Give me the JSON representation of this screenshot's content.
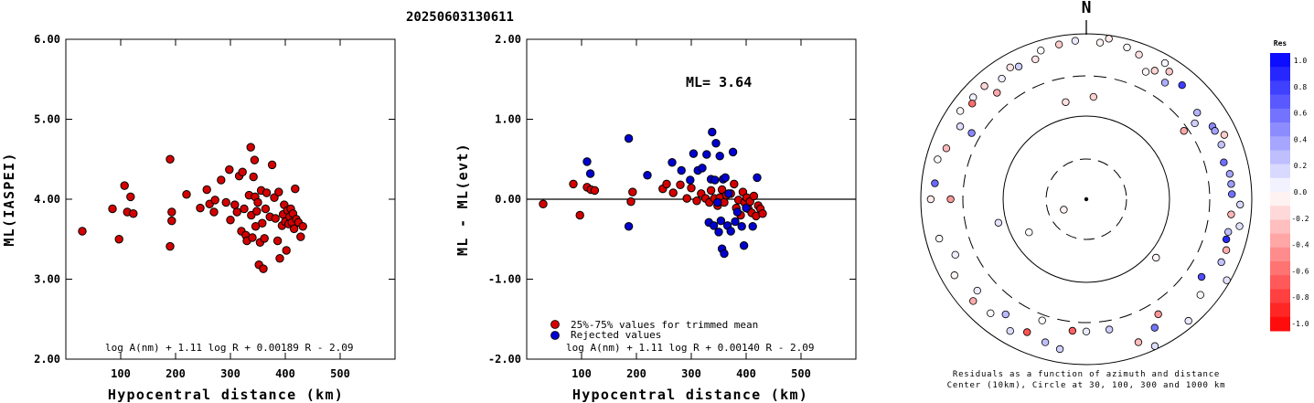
{
  "title": "20250603130611",
  "chart_data": [
    {
      "type": "scatter",
      "ylabel": "ML(IASPEI)",
      "xlabel": "Hypocentral distance (km)",
      "xlim": [
        0,
        600
      ],
      "ylim": [
        2.0,
        6.0
      ],
      "xticks": [
        "100",
        "200",
        "300",
        "400",
        "500"
      ],
      "yticks": [
        "2.00",
        "3.00",
        "4.00",
        "5.00",
        "6.00"
      ],
      "grid": false,
      "formula": "log A(nm) + 1.11 log R + 0.00189 R - 2.09",
      "series": [
        {
          "color": "#d40000",
          "points": [
            [
              30,
              3.6
            ],
            [
              85,
              3.88
            ],
            [
              97,
              3.5
            ],
            [
              107,
              4.17
            ],
            [
              112,
              3.84
            ],
            [
              118,
              4.03
            ],
            [
              123,
              3.82
            ],
            [
              190,
              4.5
            ],
            [
              190,
              3.41
            ],
            [
              193,
              3.84
            ],
            [
              193,
              3.73
            ],
            [
              220,
              4.06
            ],
            [
              245,
              3.89
            ],
            [
              257,
              4.12
            ],
            [
              262,
              3.94
            ],
            [
              270,
              3.84
            ],
            [
              272,
              3.99
            ],
            [
              283,
              4.24
            ],
            [
              292,
              3.96
            ],
            [
              298,
              4.37
            ],
            [
              300,
              3.74
            ],
            [
              308,
              3.93
            ],
            [
              312,
              3.84
            ],
            [
              316,
              4.29
            ],
            [
              320,
              3.6
            ],
            [
              322,
              4.34
            ],
            [
              325,
              3.88
            ],
            [
              328,
              3.55
            ],
            [
              330,
              3.48
            ],
            [
              334,
              4.05
            ],
            [
              337,
              4.65
            ],
            [
              338,
              3.8
            ],
            [
              340,
              3.52
            ],
            [
              342,
              4.28
            ],
            [
              344,
              4.49
            ],
            [
              345,
              4.03
            ],
            [
              346,
              3.66
            ],
            [
              348,
              3.85
            ],
            [
              350,
              3.96
            ],
            [
              352,
              3.18
            ],
            [
              354,
              3.46
            ],
            [
              356,
              4.11
            ],
            [
              358,
              3.7
            ],
            [
              360,
              3.13
            ],
            [
              362,
              3.51
            ],
            [
              364,
              3.88
            ],
            [
              366,
              4.08
            ],
            [
              372,
              3.78
            ],
            [
              376,
              4.43
            ],
            [
              380,
              4.02
            ],
            [
              382,
              3.76
            ],
            [
              386,
              3.48
            ],
            [
              388,
              4.09
            ],
            [
              390,
              3.26
            ],
            [
              394,
              3.67
            ],
            [
              396,
              3.81
            ],
            [
              398,
              3.93
            ],
            [
              400,
              3.72
            ],
            [
              402,
              3.36
            ],
            [
              404,
              3.86
            ],
            [
              406,
              3.69
            ],
            [
              408,
              3.78
            ],
            [
              410,
              3.88
            ],
            [
              412,
              3.71
            ],
            [
              414,
              3.82
            ],
            [
              416,
              3.63
            ],
            [
              418,
              4.13
            ],
            [
              420,
              3.75
            ],
            [
              424,
              3.71
            ],
            [
              428,
              3.53
            ],
            [
              432,
              3.66
            ]
          ]
        }
      ]
    },
    {
      "type": "scatter",
      "ylabel": "ML - ML(evt)",
      "xlabel": "Hypocentral distance (km)",
      "xlim": [
        0,
        600
      ],
      "ylim": [
        -2.0,
        2.0
      ],
      "xticks": [
        "100",
        "200",
        "300",
        "400",
        "500"
      ],
      "yticks": [
        "-2.00",
        "-1.00",
        "0.00",
        "1.00",
        "2.00"
      ],
      "grid": false,
      "annotation": "ML= 3.64",
      "legend": [
        {
          "label": "25%-75% values for trimmed mean",
          "color": "#d40000"
        },
        {
          "label": "Rejected values",
          "color": "#0000d0"
        }
      ],
      "legend_position": "bottom-left",
      "formula": "log A(nm) + 1.11 log R + 0.00140 R - 2.09",
      "series": [
        {
          "color": "#d40000",
          "points": [
            [
              30,
              -0.06
            ],
            [
              85,
              0.19
            ],
            [
              97,
              -0.2
            ],
            [
              110,
              0.15
            ],
            [
              117,
              0.12
            ],
            [
              124,
              0.11
            ],
            [
              190,
              -0.03
            ],
            [
              193,
              0.09
            ],
            [
              248,
              0.13
            ],
            [
              255,
              0.19
            ],
            [
              267,
              0.08
            ],
            [
              280,
              0.18
            ],
            [
              292,
              0.01
            ],
            [
              300,
              0.14
            ],
            [
              310,
              -0.02
            ],
            [
              318,
              0.07
            ],
            [
              326,
              0.01
            ],
            [
              333,
              -0.04
            ],
            [
              336,
              0.11
            ],
            [
              342,
              0.01
            ],
            [
              348,
              -0.08
            ],
            [
              352,
              0.02
            ],
            [
              356,
              0.12
            ],
            [
              360,
              -0.04
            ],
            [
              364,
              0.05
            ],
            [
              372,
              0.07
            ],
            [
              378,
              0.19
            ],
            [
              382,
              -0.11
            ],
            [
              386,
              -0.01
            ],
            [
              390,
              -0.2
            ],
            [
              394,
              0.09
            ],
            [
              397,
              -0.04
            ],
            [
              401,
              0.02
            ],
            [
              404,
              -0.12
            ],
            [
              407,
              -0.03
            ],
            [
              410,
              -0.17
            ],
            [
              414,
              0.04
            ],
            [
              418,
              -0.21
            ],
            [
              422,
              -0.08
            ],
            [
              426,
              -0.12
            ],
            [
              430,
              -0.18
            ]
          ]
        },
        {
          "color": "#0000d0",
          "points": [
            [
              110,
              0.47
            ],
            [
              116,
              0.32
            ],
            [
              186,
              0.76
            ],
            [
              186,
              -0.34
            ],
            [
              220,
              0.3
            ],
            [
              265,
              0.46
            ],
            [
              282,
              0.36
            ],
            [
              298,
              0.24
            ],
            [
              304,
              0.57
            ],
            [
              312,
              0.36
            ],
            [
              320,
              0.39
            ],
            [
              328,
              0.56
            ],
            [
              332,
              -0.29
            ],
            [
              336,
              0.25
            ],
            [
              338,
              0.84
            ],
            [
              341,
              -0.33
            ],
            [
              343,
              0.24
            ],
            [
              345,
              0.7
            ],
            [
              348,
              -0.04
            ],
            [
              350,
              -0.41
            ],
            [
              352,
              0.54
            ],
            [
              354,
              -0.27
            ],
            [
              356,
              -0.62
            ],
            [
              358,
              0.25
            ],
            [
              360,
              -0.68
            ],
            [
              362,
              0.27
            ],
            [
              366,
              -0.33
            ],
            [
              368,
              0.07
            ],
            [
              372,
              -0.4
            ],
            [
              376,
              0.59
            ],
            [
              380,
              -0.28
            ],
            [
              384,
              -0.16
            ],
            [
              392,
              -0.34
            ],
            [
              396,
              -0.58
            ],
            [
              400,
              -0.11
            ],
            [
              412,
              -0.34
            ],
            [
              420,
              0.27
            ]
          ]
        }
      ]
    }
  ],
  "polar": {
    "north_label": "N",
    "caption_line1": "Residuals as a function of azimuth and distance",
    "caption_line2": "Center (10km), Circle at 30, 100, 300 and 1000 km",
    "stations": [
      [
        -0.15,
        65
      ],
      [
        0.8,
        55
      ],
      [
        0.92,
        65
      ],
      [
        0.93,
        92
      ],
      [
        0.94,
        100
      ],
      [
        0.98,
        120
      ],
      [
        0.9,
        130
      ],
      [
        0.96,
        140
      ],
      [
        0.98,
        155
      ],
      [
        0.8,
        170
      ],
      [
        0.8,
        180
      ],
      [
        0.92,
        190
      ],
      [
        0.78,
        200
      ],
      [
        0.92,
        210
      ],
      [
        0.9,
        220
      ],
      [
        0.86,
        230
      ],
      [
        0.4,
        240
      ],
      [
        0.92,
        240
      ],
      [
        0.55,
        255
      ],
      [
        0.92,
        255
      ],
      [
        0.94,
        270
      ],
      [
        0.93,
        285
      ],
      [
        0.88,
        300
      ],
      [
        0.93,
        305
      ],
      [
        0.92,
        312
      ],
      [
        0.89,
        325
      ],
      [
        0.9,
        333
      ],
      [
        0.9,
        340
      ],
      [
        0.94,
        343
      ],
      [
        0.95,
        350
      ],
      [
        0.96,
        356
      ],
      [
        0.95,
        5
      ],
      [
        0.95,
        15
      ],
      [
        0.93,
        20
      ],
      [
        0.85,
        25
      ],
      [
        0.88,
        28
      ],
      [
        0.95,
        30
      ],
      [
        0.92,
        33
      ],
      [
        0.98,
        8
      ],
      [
        0.6,
        348
      ],
      [
        0.62,
        4
      ],
      [
        0.8,
        300
      ],
      [
        0.85,
        34
      ],
      [
        0.9,
        40
      ],
      [
        0.72,
        55
      ],
      [
        0.85,
        52
      ],
      [
        0.88,
        60
      ],
      [
        0.88,
        62
      ],
      [
        0.88,
        68
      ],
      [
        0.86,
        75
      ],
      [
        0.88,
        80
      ],
      [
        0.88,
        84
      ],
      [
        0.88,
        88
      ],
      [
        0.88,
        96
      ],
      [
        0.88,
        103
      ],
      [
        0.88,
        106
      ],
      [
        0.9,
        110
      ],
      [
        0.9,
        115
      ],
      [
        0.84,
        124
      ],
      [
        0.55,
        130
      ],
      [
        0.82,
        148
      ],
      [
        0.88,
        152
      ],
      [
        0.92,
        160
      ],
      [
        0.8,
        186
      ],
      [
        0.9,
        196
      ],
      [
        0.88,
        204
      ],
      [
        0.85,
        215
      ],
      [
        0.92,
        228
      ],
      [
        0.86,
        247
      ],
      [
        0.82,
        270
      ],
      [
        0.92,
        276
      ],
      [
        0.9,
        290
      ],
      [
        0.92,
        318
      ],
      [
        0.84,
        320
      ],
      [
        0.9,
        310
      ],
      [
        0.92,
        330
      ]
    ],
    "residuals": [
      -0.06,
      0.19,
      -0.2,
      0.15,
      0.12,
      0.11,
      -0.03,
      0.09,
      0.13,
      0.19,
      0.08,
      0.18,
      0.01,
      0.14,
      -0.02,
      0.07,
      0.01,
      -0.04,
      0.11,
      0.01,
      -0.08,
      0.02,
      0.12,
      -0.04,
      0.05,
      0.07,
      0.19,
      -0.11,
      -0.01,
      -0.2,
      0.09,
      -0.04,
      0.02,
      -0.12,
      -0.03,
      -0.17,
      0.04,
      -0.21,
      -0.08,
      -0.12,
      -0.18,
      0.47,
      0.32,
      0.76,
      -0.34,
      0.3,
      0.46,
      0.36,
      0.24,
      0.57,
      0.36,
      0.39,
      0.56,
      -0.29,
      0.25,
      0.84,
      -0.33,
      0.24,
      0.7,
      -0.04,
      -0.41,
      0.54,
      -0.27,
      -0.62,
      0.25,
      -0.68,
      0.27,
      -0.33,
      0.07,
      -0.4,
      0.59,
      -0.28,
      -0.16,
      -0.34,
      -0.58,
      -0.11
    ]
  },
  "colorbar": {
    "title": "Res",
    "labels": [
      "1.0",
      "0.8",
      "0.6",
      "0.4",
      "0.2",
      "0.0",
      "-0.2",
      "-0.4",
      "-0.6",
      "-0.8",
      "-1.0"
    ],
    "max_color": "#0000ff",
    "min_color": "#ff0000"
  }
}
